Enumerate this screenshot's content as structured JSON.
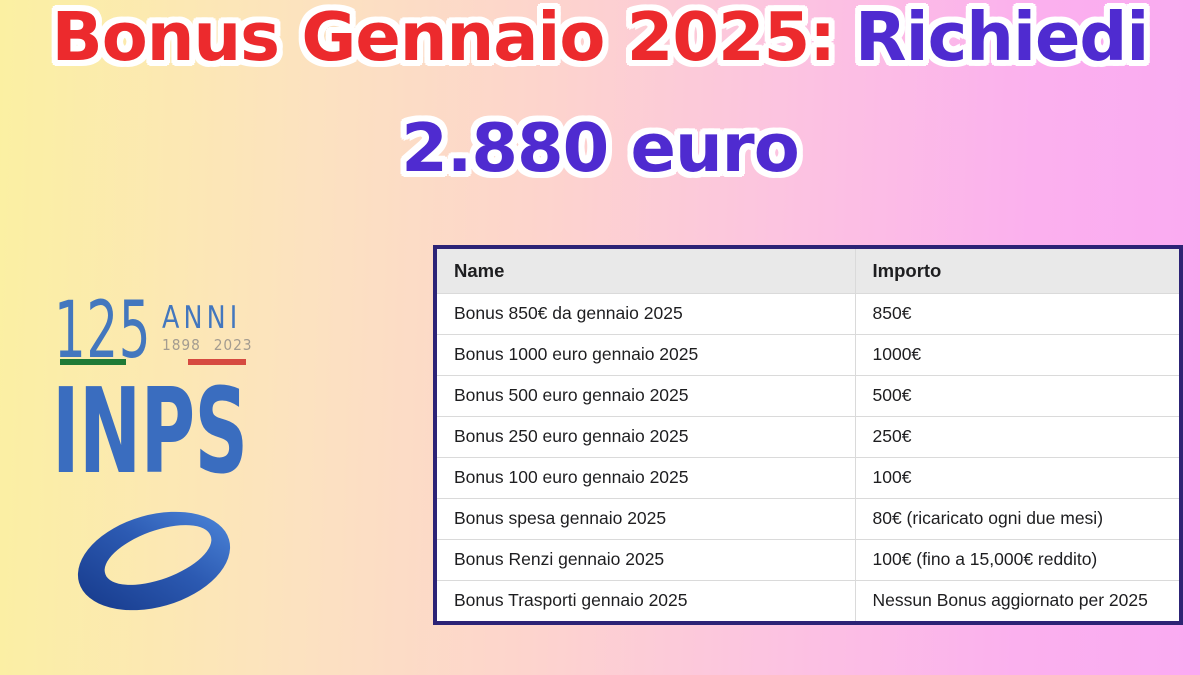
{
  "title": {
    "line1_red": "Bonus Gennaio 2025:",
    "line1_blue": "Richiedi",
    "line2": "2.880 euro"
  },
  "logo": {
    "number": "125",
    "anniversary_label": "ANNI",
    "year_start": "1898",
    "year_end": "2023",
    "org_name": "INPS",
    "mark_icon": "inps-swirl-logo"
  },
  "table": {
    "headers": {
      "name": "Name",
      "importo": "Importo"
    },
    "rows": [
      {
        "name": "Bonus 850€ da gennaio 2025",
        "importo": "850€"
      },
      {
        "name": "Bonus 1000 euro gennaio 2025",
        "importo": "1000€"
      },
      {
        "name": "Bonus 500 euro gennaio 2025",
        "importo": "500€"
      },
      {
        "name": "Bonus 250 euro gennaio 2025",
        "importo": "250€"
      },
      {
        "name": "Bonus 100 euro gennaio 2025",
        "importo": "100€"
      },
      {
        "name": "Bonus spesa gennaio 2025",
        "importo": "80€ (ricaricato ogni due mesi)"
      },
      {
        "name": "Bonus Renzi gennaio 2025",
        "importo": "100€ (fino a 15,000€ reddito)"
      },
      {
        "name": "Bonus Trasporti gennaio 2025",
        "importo": "Nessun Bonus aggiornato per 2025"
      }
    ]
  },
  "chart_data": {
    "type": "table",
    "columns": [
      "Name",
      "Importo"
    ],
    "rows": [
      [
        "Bonus 850€ da gennaio 2025",
        "850€"
      ],
      [
        "Bonus 1000 euro gennaio 2025",
        "1000€"
      ],
      [
        "Bonus 500 euro gennaio 2025",
        "500€"
      ],
      [
        "Bonus 250 euro gennaio 2025",
        "250€"
      ],
      [
        "Bonus 100 euro gennaio 2025",
        "100€"
      ],
      [
        "Bonus spesa gennaio 2025",
        "80€ (ricaricato ogni due mesi)"
      ],
      [
        "Bonus Renzi gennaio 2025",
        "100€ (fino a 15,000€ reddito)"
      ],
      [
        "Bonus Trasporti gennaio 2025",
        "Nessun Bonus aggiornato per 2025"
      ]
    ]
  },
  "colors": {
    "title_red": "#ec2a2d",
    "title_purple": "#4f2bd0",
    "title_outline": "#ffffff",
    "inps_blue": "#3a6dbf",
    "flag_green": "#1f7a36",
    "flag_red": "#d64a40",
    "years_gray": "#a49c90",
    "table_border": "#2c2376",
    "table_header_bg": "#e9e9e9",
    "bg_gradient_left": "#fbf0a2",
    "bg_gradient_right": "#faaaf2"
  }
}
